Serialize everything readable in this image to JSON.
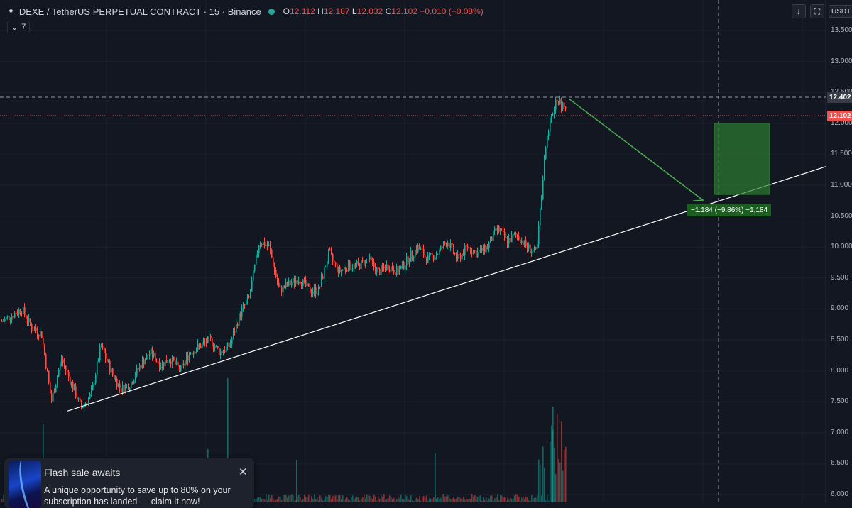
{
  "header": {
    "symbol": "DEXE / TetherUS PERPETUAL CONTRACT · 15 · Binance",
    "o_label": "O",
    "o": "12.112",
    "h_label": "H",
    "h": "12.187",
    "l_label": "L",
    "l": "12.032",
    "c_label": "C",
    "c": "12.102",
    "change": "−0.010 (−0.08%)"
  },
  "indicator_chip": {
    "count": "7"
  },
  "toolbar": {
    "download_icon": "arrow-down-icon",
    "fullscreen_icon": "fullscreen-icon",
    "currency": "USDT"
  },
  "y_axis": {
    "labels": [
      "13.500",
      "13.000",
      "12.500",
      "12.000",
      "11.500",
      "11.000",
      "10.500",
      "10.000",
      "9.500",
      "9.000",
      "8.500",
      "8.000",
      "7.500",
      "7.000",
      "6.500",
      "6.000"
    ],
    "crosshair_price": "12.402",
    "last_price": "12.102"
  },
  "measure": {
    "label": "−1.184 (−9.86%) −1,184"
  },
  "colors": {
    "background": "#131722",
    "up": "#26a69a",
    "down": "#ef5350",
    "target_box": "#2e7d32",
    "arrow": "#4caf50",
    "trendline": "#ffffff"
  },
  "chart_data": {
    "type": "candlestick",
    "interval": "15",
    "exchange": "Binance",
    "ylim": [
      6.0,
      13.6
    ],
    "price_path": [
      8.8,
      8.9,
      9.0,
      8.7,
      8.6,
      7.5,
      8.2,
      7.8,
      7.4,
      7.6,
      8.4,
      8.0,
      7.7,
      7.8,
      8.1,
      8.3,
      8.1,
      8.2,
      8.0,
      8.3,
      8.4,
      8.5,
      8.3,
      8.4,
      8.9,
      9.2,
      10.1,
      10.0,
      9.3,
      9.4,
      9.5,
      9.3,
      9.3,
      9.9,
      9.6,
      9.7,
      9.7,
      9.8,
      9.6,
      9.7,
      9.6,
      9.8,
      10.0,
      9.8,
      9.9,
      10.1,
      9.8,
      10.0,
      9.9,
      10.0,
      10.3,
      10.1,
      10.2,
      10.0,
      9.9,
      11.8,
      12.4,
      12.2
    ],
    "trendline": {
      "start_price": 7.35,
      "end_price": 11.3
    },
    "target_zone": {
      "top_price": 12.0,
      "bottom_price": 10.85
    },
    "projection_arrow": {
      "from_price": 12.4,
      "to_price": 10.85
    },
    "measure_change": -1.184,
    "measure_change_pct": -9.86
  },
  "toast": {
    "title": "Flash sale awaits",
    "body": "A unique opportunity to save up to 80% on your subscription has landed — claim it now!",
    "close_icon": "close-icon"
  }
}
